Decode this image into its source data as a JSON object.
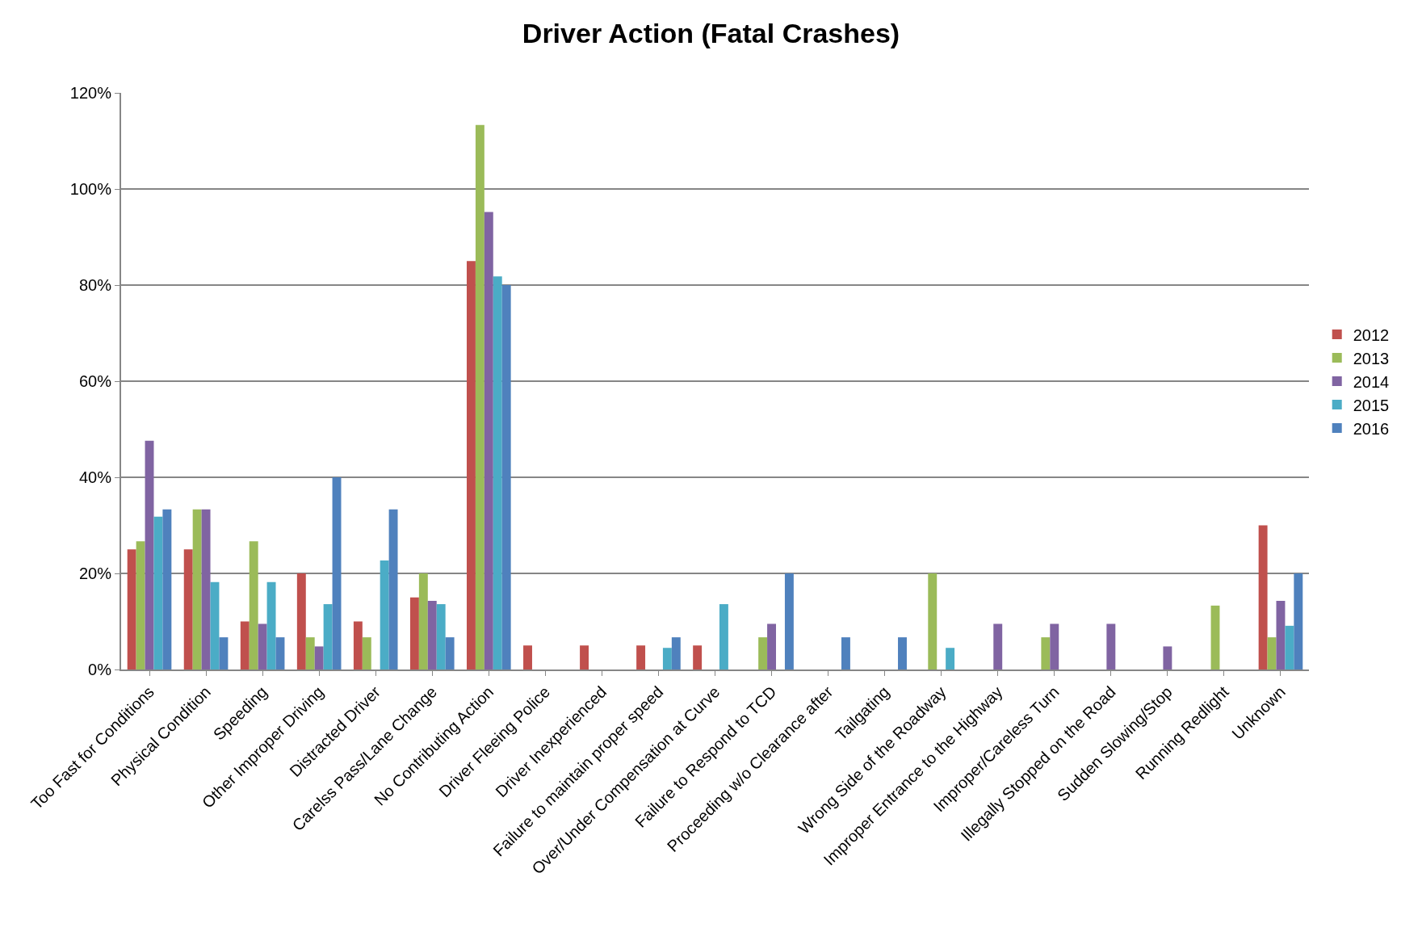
{
  "chart_data": {
    "type": "bar",
    "title": "Driver Action (Fatal Crashes)",
    "categories": [
      "Too Fast for Conditions",
      "Physical Condition",
      "Speeding",
      "Other Improper Driving",
      "Distracted Driver",
      "Carelss Pass/Lane Change",
      "No Contributing Action",
      "Driver Fleeing Police",
      "Driver Inexperienced",
      "Failure to maintain proper speed",
      "Over/Under Compensation at Curve",
      "Failure to Respond to TCD",
      "Proceeding w/o Clearance after",
      "Tailgating",
      "Wrong Side of the Roadway",
      "Improper Entrance to the Highway",
      "Improper/Careless Turn",
      "Illegally Stopped on the Road",
      "Sudden Slowing/Stop",
      "Running Redlight",
      "Unknown"
    ],
    "series": [
      {
        "name": "2012",
        "color": "#c0504d",
        "values": [
          25,
          25,
          10,
          20,
          10,
          15,
          85,
          5,
          5,
          5,
          5,
          null,
          null,
          null,
          null,
          null,
          null,
          null,
          null,
          null,
          30
        ]
      },
      {
        "name": "2013",
        "color": "#9bbb59",
        "values": [
          26.7,
          33.3,
          26.7,
          6.7,
          6.7,
          20,
          113.3,
          null,
          null,
          null,
          null,
          6.7,
          null,
          null,
          20,
          null,
          6.7,
          null,
          null,
          13.3,
          6.7
        ]
      },
      {
        "name": "2014",
        "color": "#8064a2",
        "values": [
          47.6,
          33.3,
          9.5,
          4.8,
          null,
          14.3,
          95.2,
          null,
          null,
          null,
          null,
          9.5,
          null,
          null,
          null,
          9.5,
          9.5,
          9.5,
          4.8,
          null,
          14.3
        ]
      },
      {
        "name": "2015",
        "color": "#4bacc6",
        "values": [
          31.8,
          18.2,
          18.2,
          13.6,
          22.7,
          13.6,
          81.8,
          null,
          null,
          4.5,
          13.6,
          null,
          null,
          null,
          4.5,
          null,
          null,
          null,
          null,
          null,
          9.1
        ]
      },
      {
        "name": "2016",
        "color": "#4f81bd",
        "values": [
          33.3,
          6.7,
          6.7,
          40,
          33.3,
          6.7,
          80,
          null,
          null,
          6.7,
          null,
          20,
          6.7,
          6.7,
          null,
          null,
          null,
          null,
          null,
          null,
          20
        ]
      }
    ],
    "ylim": [
      0,
      120
    ],
    "yticks": [
      {
        "value": 0,
        "label": "0%"
      },
      {
        "value": 20,
        "label": "20%"
      },
      {
        "value": 40,
        "label": "40%"
      },
      {
        "value": 60,
        "label": "60%"
      },
      {
        "value": 80,
        "label": "80%"
      },
      {
        "value": 100,
        "label": "100%"
      },
      {
        "value": 120,
        "label": "120%"
      }
    ],
    "grid": "y",
    "legend": "right"
  }
}
